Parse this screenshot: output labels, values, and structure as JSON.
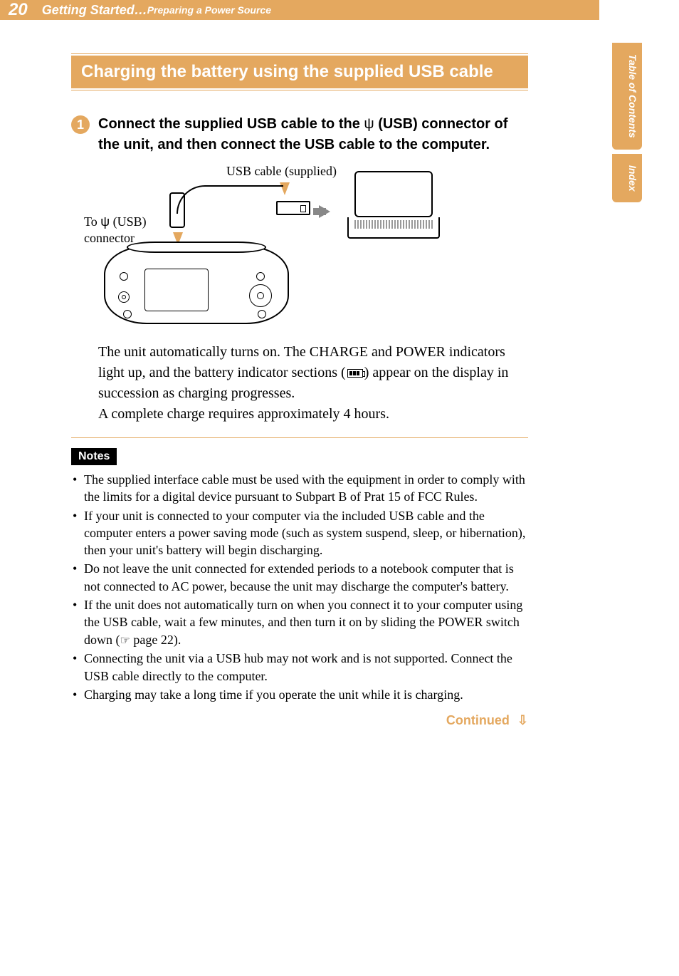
{
  "colors": {
    "accent": "#e4a85f",
    "text": "#000000",
    "background": "#ffffff",
    "notes_box_bg": "#000000",
    "notes_box_fg": "#ffffff"
  },
  "header": {
    "page_number": "20",
    "breadcrumb_main": "Getting Started…",
    "breadcrumb_sub": "Preparing a Power Source"
  },
  "side_tabs": [
    {
      "label": "Table of\nContents"
    },
    {
      "label": "Index"
    }
  ],
  "section_title": "Charging the battery using the supplied USB cable",
  "step": {
    "number": "1",
    "text_before": "Connect the supplied USB cable to the ",
    "usb_symbol": "ψ",
    "text_mid": " (USB) connector of the unit, and then connect the USB cable to the computer."
  },
  "diagram": {
    "usb_cable_label": "USB cable (supplied)",
    "connector_label_line1": "To ",
    "connector_label_symbol": "ψ",
    "connector_label_line2": " (USB)",
    "connector_label_line3": "connector"
  },
  "body_paragraph": {
    "p1_a": "The unit automatically turns on. The CHARGE and POWER indicators light up, and the battery indicator sections (",
    "p1_b": ") appear on the display in succession as charging progresses.",
    "p2": "A complete charge requires approximately 4 hours."
  },
  "notes": {
    "heading": "Notes",
    "items": [
      "The supplied interface cable must be used with the equipment in order to comply with the limits for a digital device pursuant to Subpart B of Prat 15 of FCC Rules.",
      "If your unit is connected to your computer via the included USB cable and the computer enters a power saving mode (such as system suspend, sleep, or hibernation), then your unit's battery will begin discharging.",
      "Do not leave the unit connected for extended periods to a notebook computer that is not connected to AC power, because the unit may discharge the computer's battery."
    ],
    "item_with_ref_a": "If the unit does not automatically turn on when you connect it to your computer using the USB cable, wait a few minutes, and then turn it on by sliding the POWER switch down (",
    "item_with_ref_icon": "☞",
    "item_with_ref_b": " page 22).",
    "items_after": [
      "Connecting the unit via a USB hub may not work and is not supported. Connect the USB cable directly to the computer.",
      "Charging may take a long time if you operate the unit while it is charging."
    ]
  },
  "continued": {
    "label": "Continued",
    "arrow": "⇩"
  }
}
